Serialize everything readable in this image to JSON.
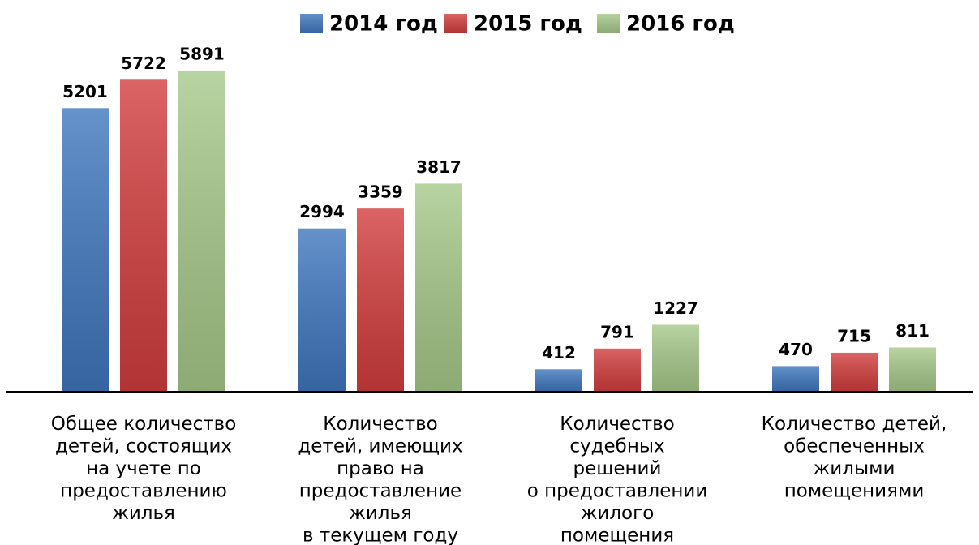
{
  "chart_data": {
    "type": "bar",
    "categories": [
      [
        "Общее количество",
        "детей, состоящих",
        "на учете по",
        "предоставлению",
        "жилья"
      ],
      [
        "Количество",
        "детей, имеющих",
        "право на",
        "предоставление",
        "жилья",
        "в текущем году"
      ],
      [
        "Количество",
        "судебных",
        "решений",
        "о предоставлении",
        "жилого",
        "помещения"
      ],
      [
        "Количество детей,",
        "обеспеченных",
        "жилыми",
        "помещениями"
      ]
    ],
    "series": [
      {
        "name": "2014 год",
        "color": "#3f77be",
        "values": [
          5201,
          2994,
          412,
          470
        ]
      },
      {
        "name": "2015 год",
        "color": "#d23d3d",
        "values": [
          5722,
          3359,
          791,
          715
        ]
      },
      {
        "name": "2016 год",
        "color": "#a6c98a",
        "values": [
          5891,
          3817,
          1227,
          811
        ]
      }
    ],
    "ylim": [
      0,
      6500
    ],
    "legend": "top"
  }
}
